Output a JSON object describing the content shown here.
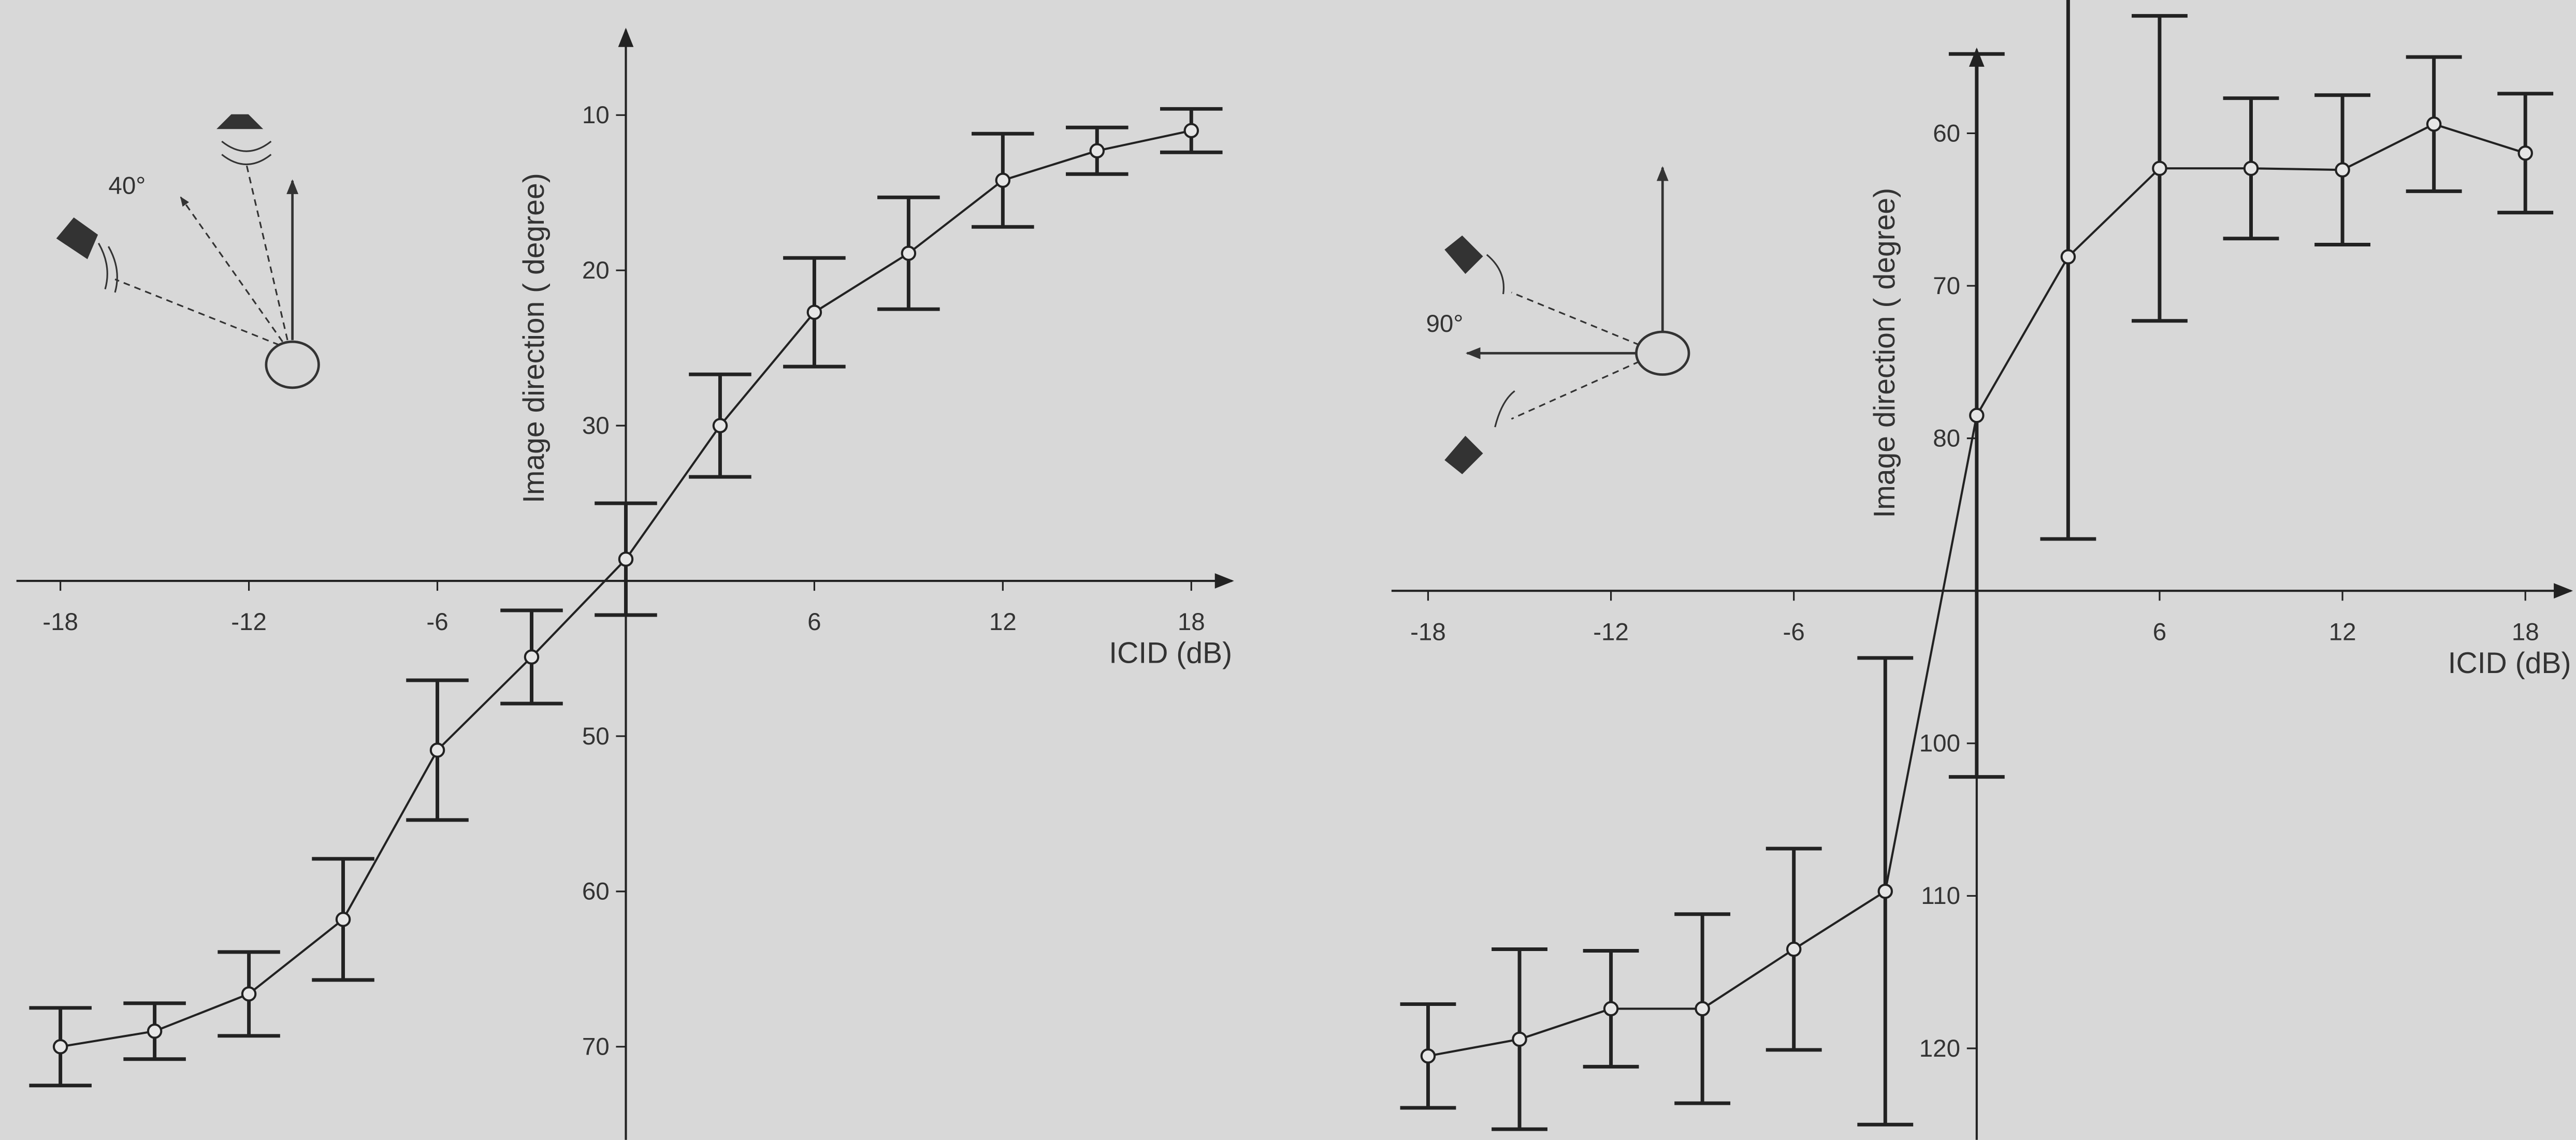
{
  "chart_data": [
    {
      "type": "line",
      "annotation": "40°",
      "ylabel": "Image direction ( degree)",
      "xlabel": "ICID (dB)",
      "x": [
        -18,
        -15,
        -12,
        -9,
        -6,
        -3,
        0,
        3,
        6,
        9,
        12,
        15,
        18
      ],
      "series": [
        {
          "color": "#222222",
          "values": [
            70,
            69,
            66.6,
            61.8,
            50.9,
            44.9,
            38.6,
            30,
            22.7,
            18.9,
            14.2,
            12.3,
            11
          ],
          "errors": [
            2.5,
            1.8,
            2.7,
            3.9,
            4.5,
            3,
            3.6,
            3.3,
            3.5,
            3.6,
            3,
            1.5,
            1.4
          ]
        }
      ],
      "xlim": [
        -19.4,
        19.3
      ],
      "ylim": [
        76,
        4.5
      ],
      "xaxis_crossing": 40,
      "xticks": [
        -18,
        -12,
        -6,
        6,
        12,
        18
      ],
      "yticks": [
        10,
        20,
        30,
        50,
        60,
        70
      ]
    },
    {
      "type": "line",
      "annotation": "90°",
      "ylabel": "Image direction ( degree)",
      "xlabel": "ICID (dB)",
      "x": [
        -18,
        -15,
        -12,
        -9,
        -6,
        -3,
        0,
        3,
        6,
        9,
        12,
        15,
        18
      ],
      "series": [
        {
          "color": "#222222",
          "values": [
            120.5,
            119.4,
            117.4,
            117.4,
            113.5,
            109.7,
            78.5,
            68.1,
            62.3,
            62.3,
            62.4,
            59.4,
            61.3
          ],
          "errors": [
            3.4,
            5.9,
            3.8,
            6.2,
            6.6,
            15.3,
            23.7,
            18.5,
            10,
            4.6,
            4.9,
            4.4,
            3.9
          ]
        }
      ],
      "xlim": [
        -19.2,
        19.5
      ],
      "ylim": [
        126,
        54.5
      ],
      "xaxis_crossing": 90,
      "xticks": [
        -18,
        -12,
        -6,
        6,
        12,
        18
      ],
      "yticks": [
        60,
        70,
        80,
        100,
        110,
        120
      ]
    }
  ]
}
